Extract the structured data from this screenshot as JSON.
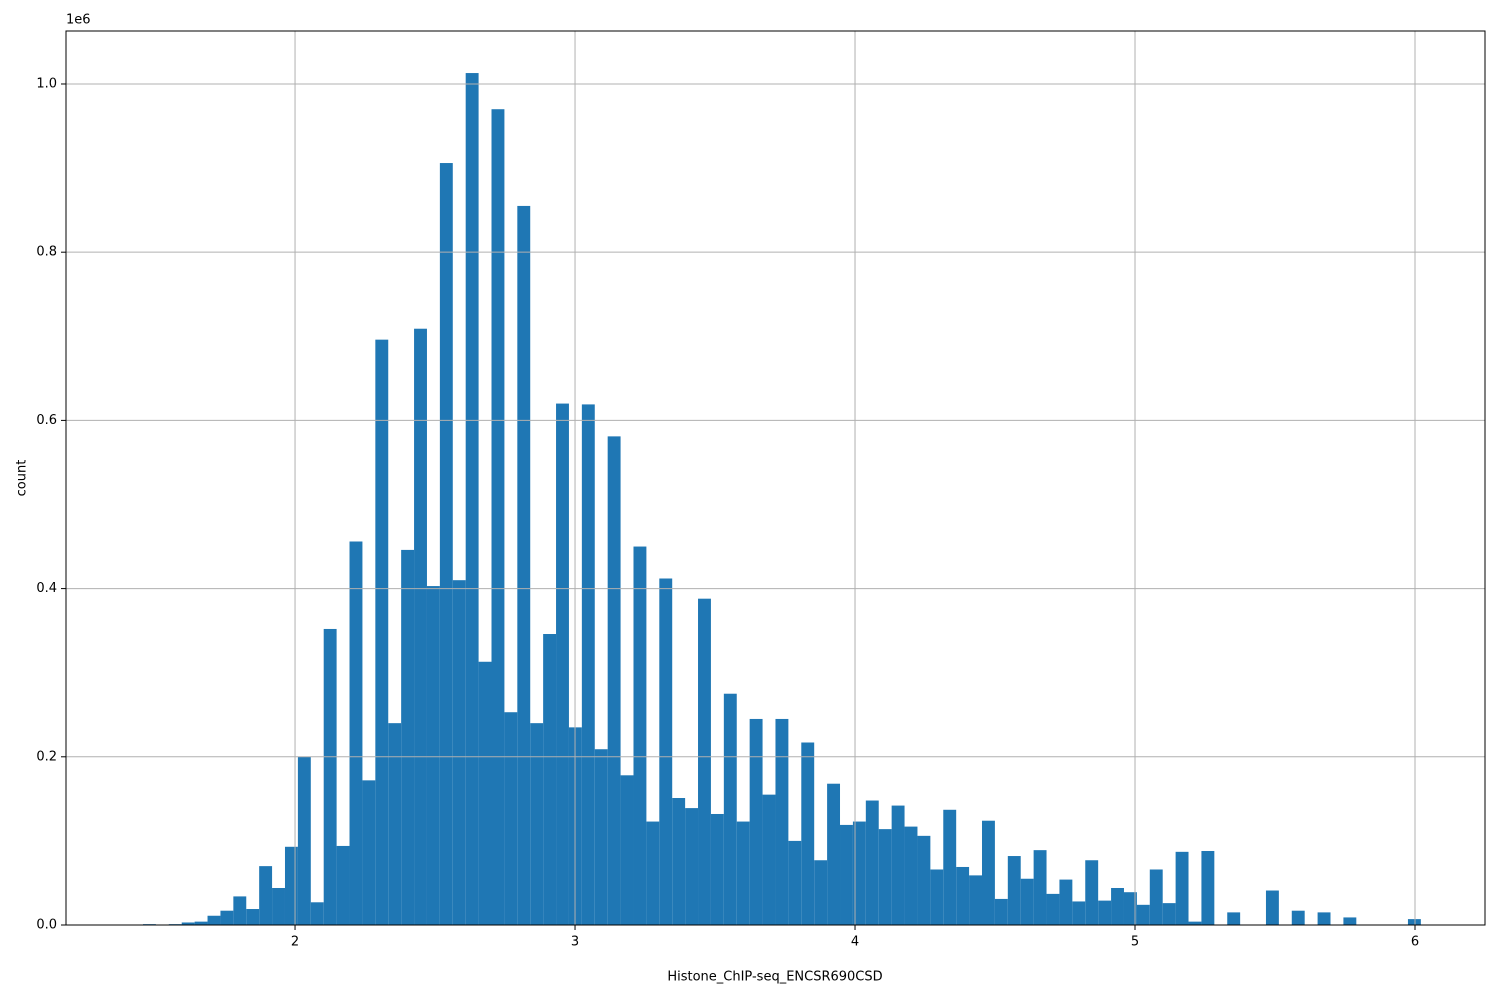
{
  "chart_data": {
    "type": "histogram",
    "x_label": "Histone_ChIP-seq_ENCSR690CSD",
    "y_label": "count",
    "y_offset_label": "1e6",
    "color": "#1f77b4",
    "grid": true,
    "bins": [
      1.457,
      1.5031,
      1.5492,
      1.5953,
      1.6414,
      1.6875,
      1.7336,
      1.7797,
      1.8258,
      1.8719,
      1.918,
      1.9641,
      2.0102,
      2.0563,
      2.1024,
      2.1485,
      2.1946,
      2.2407,
      2.2868,
      2.3329,
      2.379,
      2.4251,
      2.4712,
      2.5173,
      2.5634,
      2.6095,
      2.6556,
      2.7017,
      2.7478,
      2.7939,
      2.84,
      2.8861,
      2.9322,
      2.9783,
      3.0244,
      3.0705,
      3.1166,
      3.1627,
      3.2088,
      3.2549,
      3.301,
      3.3471,
      3.3932,
      3.4393,
      3.4854,
      3.5315,
      3.5776,
      3.6237,
      3.6698,
      3.7159,
      3.762,
      3.8081,
      3.8542,
      3.9003,
      3.9464,
      3.9925,
      4.0386,
      4.0847,
      4.1308,
      4.1769,
      4.223,
      4.2691,
      4.3152,
      4.3613,
      4.4074,
      4.4535,
      4.4996,
      4.5457,
      4.5918,
      4.6379,
      4.684,
      4.7301,
      4.7762,
      4.8223,
      4.8684,
      4.9145,
      4.9606,
      5.0067,
      5.0528,
      5.0989,
      5.145,
      5.1911,
      5.2372,
      5.2833,
      5.3294,
      5.3755,
      5.4216,
      5.4677,
      5.5138,
      5.5599,
      5.606,
      5.6521,
      5.6982,
      5.7443,
      5.7904,
      5.8365,
      5.8826,
      5.9287,
      5.9748,
      6.0209
    ],
    "values": [
      1000,
      0,
      1000,
      3000,
      4000,
      11000,
      17000,
      34000,
      19000,
      70000,
      44000,
      93000,
      200000,
      27000,
      352000,
      94000,
      456000,
      172000,
      696000,
      240000,
      446000,
      709000,
      403000,
      906000,
      410000,
      1013000,
      313000,
      970000,
      253000,
      855000,
      240000,
      346000,
      620000,
      235000,
      619000,
      209000,
      581000,
      178000,
      450000,
      123000,
      412000,
      151000,
      139000,
      388000,
      132000,
      275000,
      123000,
      245000,
      155000,
      245000,
      100000,
      217000,
      77000,
      168000,
      119000,
      123000,
      148000,
      114000,
      142000,
      117000,
      106000,
      66000,
      137000,
      69000,
      59000,
      124000,
      31000,
      82000,
      55000,
      89000,
      37000,
      54000,
      28000,
      77000,
      29000,
      44000,
      39000,
      24000,
      66000,
      26000,
      87000,
      4000,
      88000,
      0,
      15000,
      0,
      0,
      41000,
      0,
      17000,
      0,
      15000,
      0,
      9000,
      0,
      0,
      0,
      0,
      7000
    ],
    "xlim": [
      1.182,
      6.25
    ],
    "xticks": [
      2,
      3,
      4,
      5,
      6
    ],
    "ylim": [
      0,
      1063000
    ],
    "yticks": [
      {
        "value": 0,
        "label": "0.0"
      },
      {
        "value": 200000,
        "label": "0.2"
      },
      {
        "value": 400000,
        "label": "0.4"
      },
      {
        "value": 600000,
        "label": "0.6"
      },
      {
        "value": 800000,
        "label": "0.8"
      },
      {
        "value": 1000000,
        "label": "1.0"
      }
    ]
  }
}
